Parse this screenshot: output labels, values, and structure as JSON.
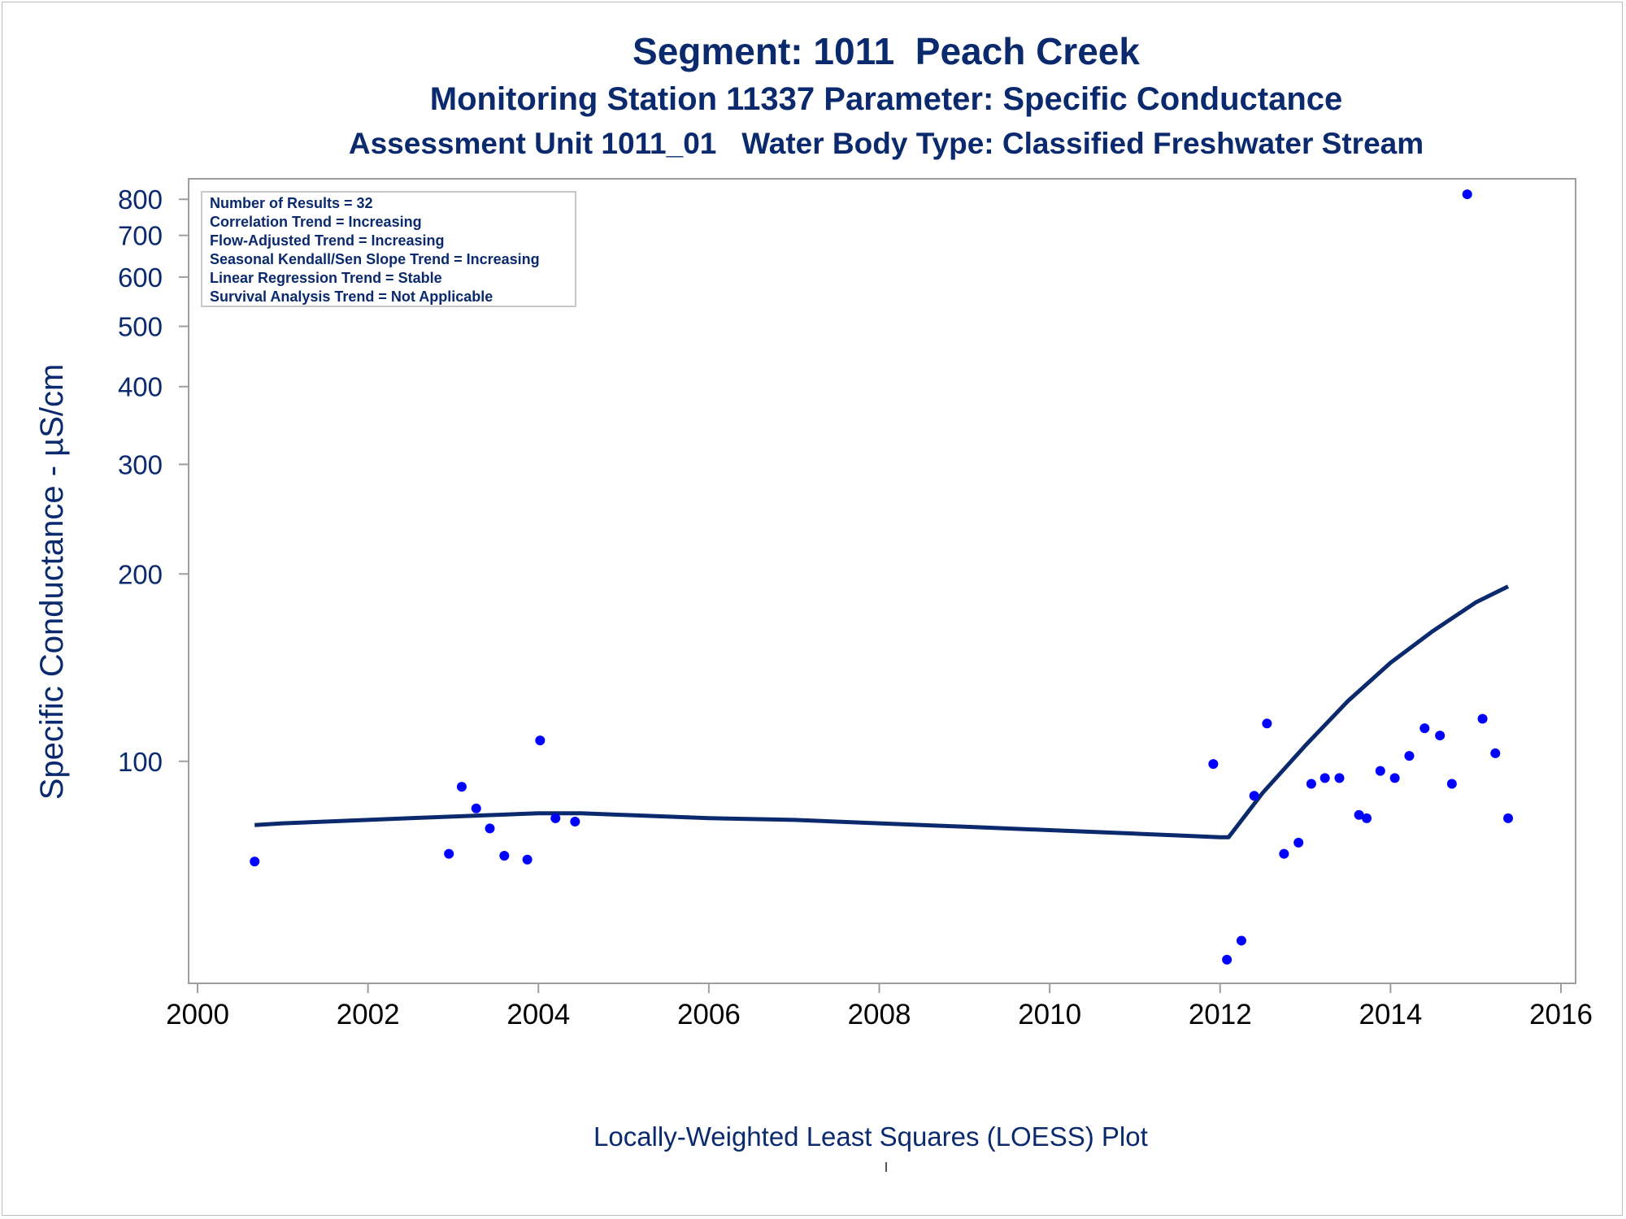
{
  "titles": {
    "line1": "Segment: 1011  Peach Creek",
    "line2": "Monitoring Station 11337 Parameter: Specific Conductance",
    "line3": "Assessment Unit 1011_01   Water Body Type: Classified Freshwater Stream"
  },
  "caption": "Locally-Weighted Least Squares (LOESS) Plot",
  "colors": {
    "text": "#0b2a6e",
    "points": "#0000ff",
    "loess_line": "#0b2a6e",
    "axis": "#9e9e9e"
  },
  "chart_data": {
    "type": "scatter",
    "title": "Segment: 1011  Peach Creek",
    "xlabel": "",
    "ylabel": "Specific Conductance -  µS/cm",
    "yscale": "log",
    "xlim": [
      2000,
      2016
    ],
    "ylim": [
      46,
      830
    ],
    "x_ticks": [
      2000,
      2002,
      2004,
      2006,
      2008,
      2010,
      2012,
      2014,
      2016
    ],
    "y_ticks": [
      100,
      200,
      300,
      400,
      500,
      600,
      700,
      800
    ],
    "grid": false,
    "stats_box": [
      "Number of Results = 32",
      "Correlation Trend = Increasing",
      "Flow-Adjusted Trend = Increasing",
      "Seasonal Kendall/Sen Slope Trend = Increasing",
      "Linear Regression Trend = Stable",
      "Survival Analysis Trend = Not Applicable"
    ],
    "points": [
      [
        2000.67,
        69
      ],
      [
        2002.95,
        71
      ],
      [
        2003.1,
        91
      ],
      [
        2003.27,
        84
      ],
      [
        2003.43,
        78
      ],
      [
        2003.6,
        70.5
      ],
      [
        2003.87,
        69.5
      ],
      [
        2004.02,
        108
      ],
      [
        2004.2,
        81
      ],
      [
        2004.43,
        80
      ],
      [
        2011.92,
        99
      ],
      [
        2012.08,
        48
      ],
      [
        2012.25,
        51.5
      ],
      [
        2012.4,
        88
      ],
      [
        2012.55,
        115
      ],
      [
        2012.75,
        71
      ],
      [
        2012.92,
        74
      ],
      [
        2013.07,
        92
      ],
      [
        2013.23,
        94
      ],
      [
        2013.4,
        94
      ],
      [
        2013.63,
        82
      ],
      [
        2013.72,
        81
      ],
      [
        2013.88,
        96.5
      ],
      [
        2014.05,
        94
      ],
      [
        2014.22,
        102
      ],
      [
        2014.4,
        113
      ],
      [
        2014.58,
        110
      ],
      [
        2014.72,
        92
      ],
      [
        2014.9,
        815
      ],
      [
        2015.08,
        117
      ],
      [
        2015.23,
        103
      ],
      [
        2015.38,
        81
      ]
    ],
    "series": [
      {
        "type": "line",
        "x": [
          2000.67,
          2001,
          2001.5,
          2002,
          2002.5,
          2003,
          2003.5,
          2004,
          2004.5,
          2005,
          2006,
          2007,
          2008,
          2009,
          2010,
          2011,
          2011.5,
          2012.0,
          2012.1,
          2012.5,
          2013,
          2013.5,
          2014,
          2014.5,
          2015,
          2015.38
        ],
        "y": [
          79,
          79.5,
          80,
          80.5,
          81,
          81.5,
          82,
          82.5,
          82.5,
          82,
          81,
          80.5,
          79.5,
          78.5,
          77.5,
          76.5,
          76,
          75.5,
          75.5,
          89,
          106,
          125,
          144,
          162,
          180,
          191
        ]
      }
    ]
  }
}
